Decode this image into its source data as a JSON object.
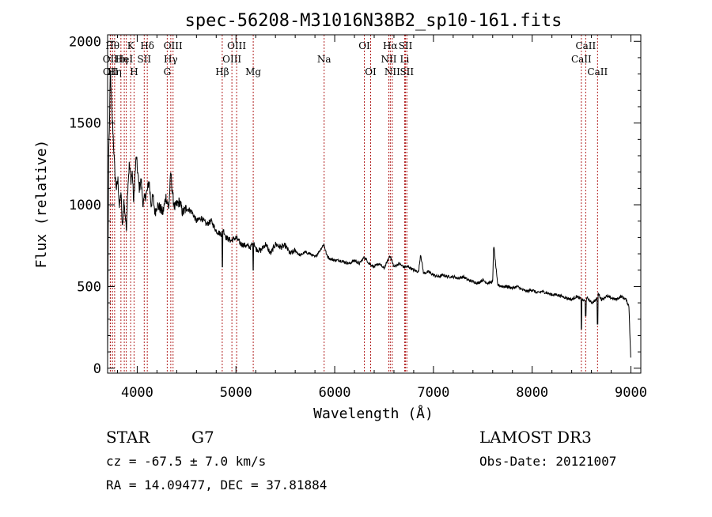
{
  "chart_data": {
    "type": "line",
    "title": "spec-56208-M31016N38B2_sp10-161.fits",
    "xlabel": "Wavelength (Å)",
    "ylabel": "Flux (relative)",
    "xlim": [
      3700,
      9100
    ],
    "ylim": [
      -30,
      2040
    ],
    "x_ticks": [
      {
        "value": 4000,
        "label": "4000"
      },
      {
        "value": 5000,
        "label": "5000"
      },
      {
        "value": 6000,
        "label": "6000"
      },
      {
        "value": 7000,
        "label": "7000"
      },
      {
        "value": 8000,
        "label": "8000"
      },
      {
        "value": 9000,
        "label": "9000"
      }
    ],
    "y_ticks": [
      {
        "value": 0,
        "label": "0"
      },
      {
        "value": 500,
        "label": "500"
      },
      {
        "value": 1000,
        "label": "1000"
      },
      {
        "value": 1500,
        "label": "1500"
      },
      {
        "value": 2000,
        "label": "2000"
      }
    ],
    "series": [
      {
        "name": "spectrum",
        "x": [
          3700,
          3705,
          3712,
          3720,
          3728,
          3735,
          3745,
          3755,
          3765,
          3775,
          3790,
          3805,
          3820,
          3835,
          3850,
          3865,
          3880,
          3890,
          3905,
          3920,
          3935,
          3950,
          3965,
          3975,
          3990,
          4005,
          4020,
          4040,
          4060,
          4080,
          4100,
          4120,
          4140,
          4160,
          4180,
          4200,
          4230,
          4260,
          4290,
          4320,
          4340,
          4360,
          4380,
          4400,
          4430,
          4460,
          4500,
          4550,
          4600,
          4650,
          4700,
          4750,
          4800,
          4850,
          4870,
          4900,
          4950,
          5000,
          5050,
          5100,
          5150,
          5180,
          5200,
          5250,
          5300,
          5350,
          5400,
          5450,
          5500,
          5550,
          5600,
          5650,
          5700,
          5750,
          5800,
          5850,
          5890,
          5920,
          5950,
          6000,
          6050,
          6100,
          6150,
          6200,
          6250,
          6300,
          6350,
          6400,
          6450,
          6500,
          6560,
          6600,
          6650,
          6700,
          6750,
          6800,
          6850,
          6870,
          6900,
          6950,
          7000,
          7050,
          7100,
          7150,
          7200,
          7250,
          7300,
          7350,
          7400,
          7450,
          7500,
          7550,
          7600,
          7610,
          7650,
          7700,
          7750,
          7800,
          7850,
          7900,
          7950,
          8000,
          8050,
          8100,
          8150,
          8200,
          8250,
          8300,
          8350,
          8400,
          8450,
          8500,
          8540,
          8560,
          8600,
          8650,
          8670,
          8700,
          8750,
          8800,
          8850,
          8900,
          8950,
          8980,
          9000
        ],
        "y": [
          30,
          700,
          1350,
          1500,
          1850,
          1700,
          1550,
          1450,
          1300,
          1180,
          1100,
          1150,
          980,
          1080,
          850,
          1020,
          930,
          840,
          1120,
          1250,
          1150,
          1200,
          1000,
          1150,
          1300,
          1200,
          1100,
          1150,
          1000,
          1050,
          1080,
          1150,
          1000,
          1050,
          950,
          1000,
          980,
          950,
          1050,
          980,
          1200,
          1050,
          980,
          1000,
          1020,
          950,
          980,
          960,
          900,
          920,
          880,
          900,
          840,
          820,
          850,
          800,
          780,
          800,
          760,
          750,
          740,
          780,
          730,
          720,
          760,
          700,
          760,
          740,
          750,
          700,
          720,
          690,
          710,
          700,
          680,
          720,
          760,
          690,
          670,
          660,
          660,
          650,
          640,
          660,
          640,
          680,
          640,
          620,
          640,
          610,
          690,
          620,
          640,
          620,
          620,
          600,
          590,
          700,
          580,
          590,
          570,
          560,
          570,
          560,
          560,
          550,
          560,
          540,
          530,
          520,
          540,
          520,
          530,
          760,
          510,
          500,
          500,
          490,
          500,
          480,
          470,
          480,
          460,
          470,
          460,
          450,
          450,
          440,
          430,
          420,
          440,
          420,
          410,
          430,
          400,
          420,
          460,
          420,
          440,
          430,
          420,
          440,
          420,
          380,
          30
        ]
      }
    ],
    "dips": [
      {
        "x": 8498,
        "y": 240
      },
      {
        "x": 8542,
        "y": 320
      },
      {
        "x": 8662,
        "y": 270
      },
      {
        "x": 4862,
        "y": 620
      },
      {
        "x": 5175,
        "y": 600
      }
    ],
    "lines": [
      {
        "wavelength": 3727,
        "label": "OII",
        "row": 1
      },
      {
        "wavelength": 3729,
        "label": "OII",
        "row": 2
      },
      {
        "wavelength": 3750,
        "label": "Hθ",
        "row": 0
      },
      {
        "wavelength": 3771,
        "label": "Hη",
        "row": 2
      },
      {
        "wavelength": 3835,
        "label": "Hη",
        "row": 1
      },
      {
        "wavelength": 3869,
        "label": "HeI",
        "row": 1
      },
      {
        "wavelength": 3889,
        "label": "",
        "row": 1
      },
      {
        "wavelength": 3934,
        "label": "K",
        "row": 0
      },
      {
        "wavelength": 3968,
        "label": "H",
        "row": 2
      },
      {
        "wavelength": 4071,
        "label": "SII",
        "row": 1
      },
      {
        "wavelength": 4102,
        "label": "Hδ",
        "row": 0
      },
      {
        "wavelength": 4304,
        "label": "G",
        "row": 2
      },
      {
        "wavelength": 4340,
        "label": "Hγ",
        "row": 1
      },
      {
        "wavelength": 4363,
        "label": "OIII",
        "row": 0
      },
      {
        "wavelength": 4861,
        "label": "Hβ",
        "row": 2
      },
      {
        "wavelength": 4959,
        "label": "OIII",
        "row": 1
      },
      {
        "wavelength": 5007,
        "label": "OIII",
        "row": 0
      },
      {
        "wavelength": 5175,
        "label": "Mg",
        "row": 2
      },
      {
        "wavelength": 5893,
        "label": "Na",
        "row": 1
      },
      {
        "wavelength": 6300,
        "label": "OI",
        "row": 0
      },
      {
        "wavelength": 6364,
        "label": "OI",
        "row": 2
      },
      {
        "wavelength": 6548,
        "label": "NII",
        "row": 1
      },
      {
        "wavelength": 6563,
        "label": "Hα",
        "row": 0
      },
      {
        "wavelength": 6583,
        "label": "NII",
        "row": 2
      },
      {
        "wavelength": 6708,
        "label": "Li",
        "row": 1
      },
      {
        "wavelength": 6717,
        "label": "SII",
        "row": 0
      },
      {
        "wavelength": 6731,
        "label": "SII",
        "row": 2
      },
      {
        "wavelength": 8498,
        "label": "CaII",
        "row": 1
      },
      {
        "wavelength": 8542,
        "label": "CaII",
        "row": 0
      },
      {
        "wavelength": 8662,
        "label": "CaII",
        "row": 2
      }
    ]
  },
  "info": {
    "object_class": "STAR",
    "subclass": "G7",
    "redshift_text": "cz = -67.5 ± 7.0 km/s",
    "coords_text": "RA =  14.09477, DEC =  37.81884",
    "survey": "LAMOST DR3",
    "obs_date_text": "Obs-Date: 20121007"
  },
  "colors": {
    "line_marker": "#b22222",
    "spectrum": "#000000",
    "axes": "#000000"
  }
}
